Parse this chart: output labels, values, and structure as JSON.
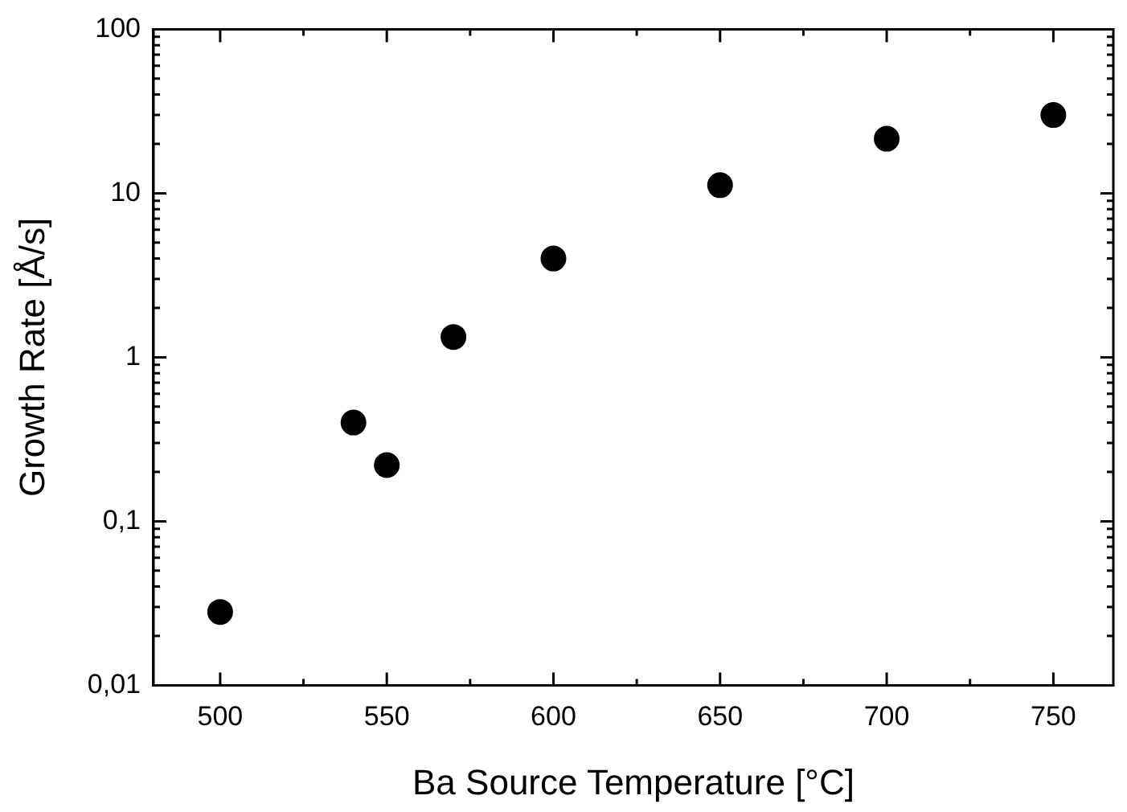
{
  "chart_data": {
    "type": "scatter",
    "xlabel": "Ba Source Temperature [°C]",
    "ylabel": "Growth Rate [Å/s]",
    "x": [
      500,
      540,
      550,
      570,
      600,
      650,
      700,
      750
    ],
    "series": [
      {
        "color": "#000000",
        "values": [
          0.028,
          0.4,
          0.22,
          1.33,
          4.0,
          11.2,
          21.5,
          30
        ]
      }
    ],
    "log": "y",
    "marker": "circle",
    "grid": false,
    "legend": false,
    "xlim": [
      480,
      768
    ],
    "xticks": [
      500,
      {
        "value": 525,
        "label": null
      },
      550,
      {
        "value": 575,
        "label": null
      },
      600,
      {
        "value": 625,
        "label": null
      },
      650,
      {
        "value": 675,
        "label": null
      },
      700,
      {
        "value": 725,
        "label": null
      },
      750
    ],
    "ylim": [
      0.01,
      100
    ],
    "yticks": [
      {
        "value": 0.01,
        "label": "0,01"
      },
      {
        "value": 0.02,
        "label": null
      },
      {
        "value": 0.03,
        "label": null
      },
      {
        "value": 0.04,
        "label": null
      },
      {
        "value": 0.05,
        "label": null
      },
      {
        "value": 0.06,
        "label": null
      },
      {
        "value": 0.07,
        "label": null
      },
      {
        "value": 0.08,
        "label": null
      },
      {
        "value": 0.09,
        "label": null
      },
      {
        "value": 0.1,
        "label": "0,1"
      },
      {
        "value": 0.2,
        "label": null
      },
      {
        "value": 0.3,
        "label": null
      },
      {
        "value": 0.4,
        "label": null
      },
      {
        "value": 0.5,
        "label": null
      },
      {
        "value": 0.6,
        "label": null
      },
      {
        "value": 0.7,
        "label": null
      },
      {
        "value": 0.8,
        "label": null
      },
      {
        "value": 0.9,
        "label": null
      },
      1,
      {
        "value": 2,
        "label": null
      },
      {
        "value": 3,
        "label": null
      },
      {
        "value": 4,
        "label": null
      },
      {
        "value": 5,
        "label": null
      },
      {
        "value": 6,
        "label": null
      },
      {
        "value": 7,
        "label": null
      },
      {
        "value": 8,
        "label": null
      },
      {
        "value": 9,
        "label": null
      },
      10,
      {
        "value": 20,
        "label": null
      },
      {
        "value": 30,
        "label": null
      },
      {
        "value": 40,
        "label": null
      },
      {
        "value": 50,
        "label": null
      },
      {
        "value": 60,
        "label": null
      },
      {
        "value": 70,
        "label": null
      },
      {
        "value": 80,
        "label": null
      },
      {
        "value": 90,
        "label": null
      },
      100
    ]
  }
}
